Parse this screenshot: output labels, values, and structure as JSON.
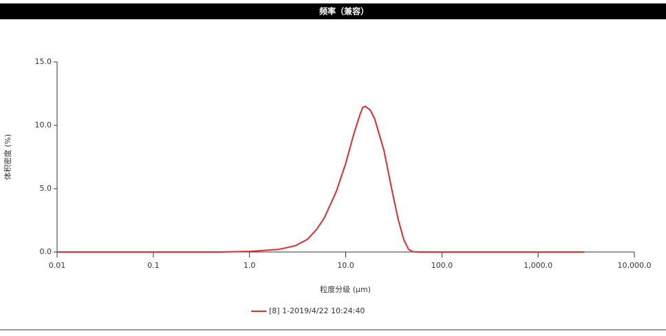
{
  "chart_data": {
    "type": "line",
    "title": "频率（兼容）",
    "y_label": "体积密度 (%)",
    "x_label": "粒度分级 (μm)",
    "x_scale": "log",
    "xlim": [
      0.01,
      10000
    ],
    "ylim": [
      0,
      15
    ],
    "xticks": [
      0.01,
      0.1,
      {
        "value": 1,
        "label": "1.0"
      },
      {
        "value": 10,
        "label": "10.0"
      },
      {
        "value": 100,
        "label": "100.0"
      },
      {
        "value": 1000,
        "label": "1,000.0"
      },
      {
        "value": 10000,
        "label": "10,000.0"
      }
    ],
    "yticks": [
      {
        "value": 0,
        "label": "0.0"
      },
      {
        "value": 5,
        "label": "5.0"
      },
      {
        "value": 10,
        "label": "10.0"
      },
      {
        "value": 15,
        "label": "15.0"
      }
    ],
    "x": [
      0.01,
      0.1,
      0.5,
      1,
      2,
      3,
      4,
      5,
      6,
      8,
      10,
      12,
      14,
      15,
      16,
      18,
      20,
      25,
      30,
      35,
      40,
      45,
      50,
      60,
      100,
      1000,
      3000
    ],
    "series": [
      {
        "name": "[8]  1-2019/4/22 10:24:40",
        "color": "#e8262b",
        "values": [
          0,
          0,
          0,
          0.05,
          0.2,
          0.5,
          1.0,
          1.8,
          2.7,
          4.8,
          7.0,
          9.2,
          10.8,
          11.4,
          11.5,
          11.2,
          10.5,
          8.0,
          5.0,
          2.6,
          1.0,
          0.2,
          0.02,
          0,
          0,
          0,
          0
        ]
      }
    ]
  }
}
